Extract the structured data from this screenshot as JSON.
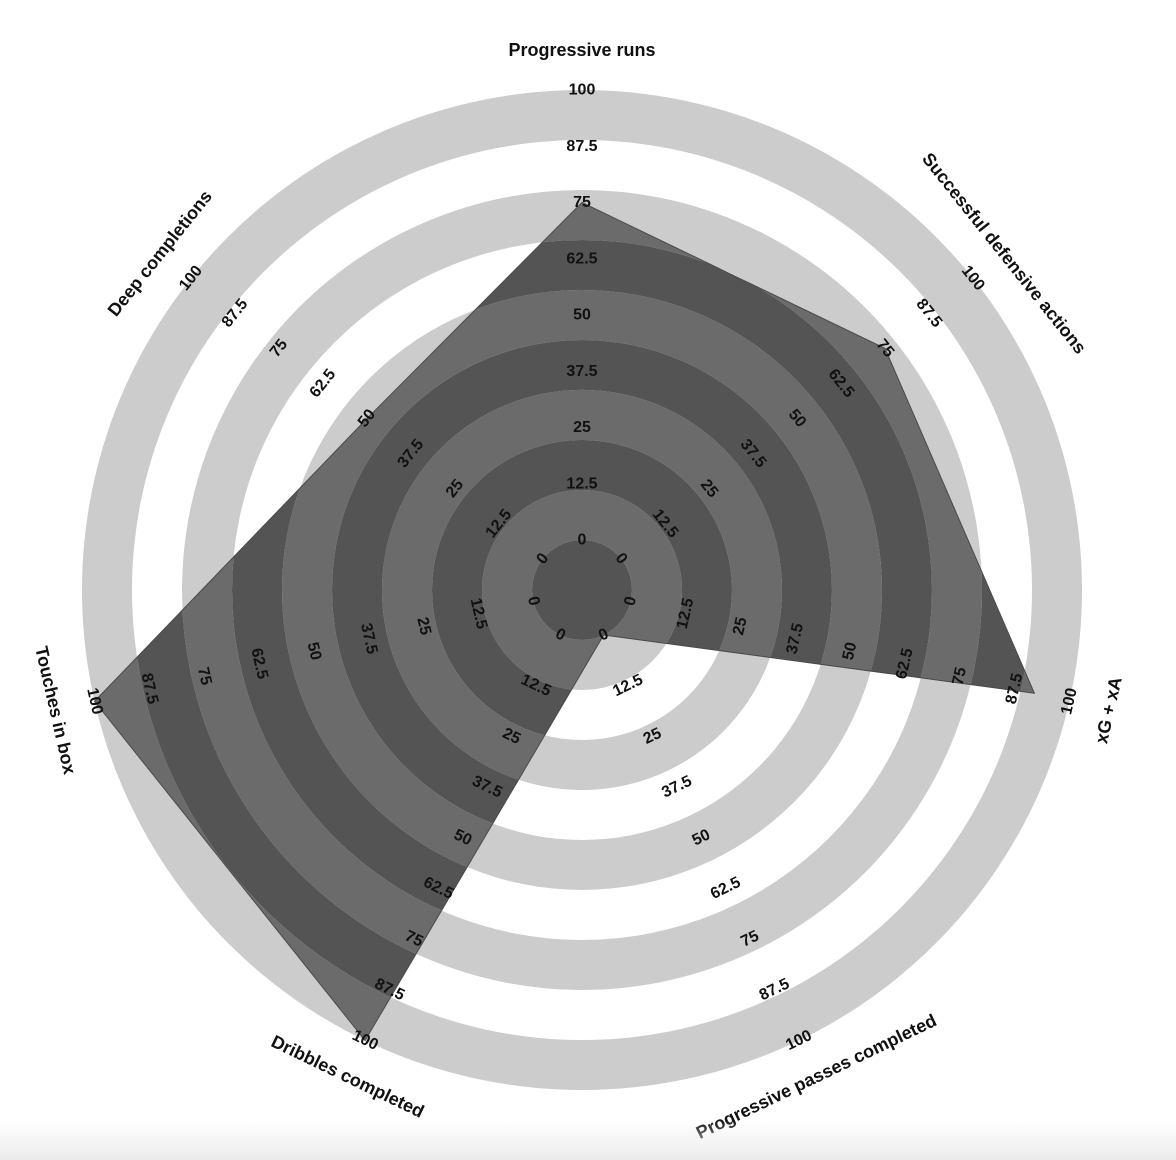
{
  "chart_data": {
    "type": "radar",
    "title": "",
    "rlim": [
      0,
      100
    ],
    "ticks": [
      "0",
      "12.5",
      "25",
      "37.5",
      "50",
      "62.5",
      "75",
      "87.5",
      "100"
    ],
    "tick_values": [
      0,
      12.5,
      25,
      37.5,
      50,
      62.5,
      75,
      87.5,
      100
    ],
    "axes": [
      "Progressive runs",
      "Successful defensive actions",
      "xG + xA",
      "Progressive passes completed",
      "Dribbles completed",
      "Touches in box",
      "Deep completions"
    ],
    "series": [
      {
        "name": "",
        "values": [
          75,
          75,
          92,
          0,
          100,
          100,
          50
        ]
      }
    ],
    "colors": {
      "ring_light": "#cccccc",
      "ring_dark": "#555555",
      "polygon_fill": "#555555",
      "polygon_light_band": "#6b6b6b",
      "polygon_dark_band": "#545454"
    },
    "grid": true,
    "legend": "none"
  }
}
